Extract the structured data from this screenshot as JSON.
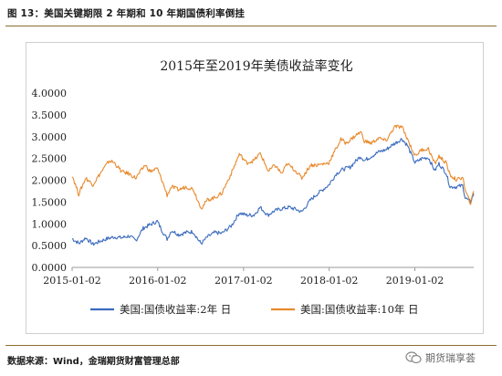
{
  "figure": {
    "title": "图 13：美国关键期限 2 年期和 10 年期国债利率倒挂",
    "source": "数据来源：Wind，金瑞期货财富管理总部",
    "watermark": "期货瑞享荟"
  },
  "colors": {
    "series_2y": "#3b6bbf",
    "series_10y": "#e8892c",
    "rule": "#8a6d2e"
  },
  "chart_data": {
    "type": "line",
    "title": "2015年至2019年美债收益率变化",
    "xlabel": "",
    "ylabel": "",
    "x_range": [
      "2015-01-02",
      "2019-09-10"
    ],
    "ylim": [
      0,
      4
    ],
    "yticks": [
      "4.0000",
      "3.5000",
      "3.0000",
      "2.5000",
      "2.0000",
      "1.5000",
      "1.0000",
      "0.5000",
      "0.0000"
    ],
    "xticks": [
      {
        "date": "2015-01-02",
        "label": "2015-01-02"
      },
      {
        "date": "2016-01-02",
        "label": "2016-01-02"
      },
      {
        "date": "2017-01-02",
        "label": "2017-01-02"
      },
      {
        "date": "2018-01-02",
        "label": "2018-01-02"
      },
      {
        "date": "2019-01-02",
        "label": "2019-01-02"
      }
    ],
    "grid": false,
    "legend": "bottom",
    "series": [
      {
        "name": "美国:国债收益率:2年 日",
        "color": "#3b6bbf",
        "points": [
          [
            "2015-01-02",
            0.66
          ],
          [
            "2015-02-01",
            0.55
          ],
          [
            "2015-03-01",
            0.68
          ],
          [
            "2015-04-01",
            0.53
          ],
          [
            "2015-05-01",
            0.6
          ],
          [
            "2015-06-01",
            0.66
          ],
          [
            "2015-07-01",
            0.7
          ],
          [
            "2015-08-01",
            0.68
          ],
          [
            "2015-09-01",
            0.72
          ],
          [
            "2015-10-01",
            0.62
          ],
          [
            "2015-11-01",
            0.9
          ],
          [
            "2015-12-01",
            0.98
          ],
          [
            "2015-12-31",
            1.06
          ],
          [
            "2016-01-20",
            0.85
          ],
          [
            "2016-02-11",
            0.65
          ],
          [
            "2016-03-01",
            0.85
          ],
          [
            "2016-04-01",
            0.75
          ],
          [
            "2016-05-01",
            0.8
          ],
          [
            "2016-06-01",
            0.82
          ],
          [
            "2016-06-27",
            0.6
          ],
          [
            "2016-07-06",
            0.55
          ],
          [
            "2016-08-01",
            0.7
          ],
          [
            "2016-09-01",
            0.8
          ],
          [
            "2016-10-01",
            0.78
          ],
          [
            "2016-11-10",
            0.95
          ],
          [
            "2016-12-15",
            1.25
          ],
          [
            "2017-01-15",
            1.2
          ],
          [
            "2017-02-15",
            1.2
          ],
          [
            "2017-03-14",
            1.38
          ],
          [
            "2017-04-15",
            1.2
          ],
          [
            "2017-05-15",
            1.3
          ],
          [
            "2017-06-15",
            1.35
          ],
          [
            "2017-07-15",
            1.38
          ],
          [
            "2017-08-15",
            1.33
          ],
          [
            "2017-09-07",
            1.27
          ],
          [
            "2017-10-15",
            1.55
          ],
          [
            "2017-11-15",
            1.7
          ],
          [
            "2017-12-31",
            1.89
          ],
          [
            "2018-02-01",
            2.15
          ],
          [
            "2018-03-01",
            2.25
          ],
          [
            "2018-04-01",
            2.3
          ],
          [
            "2018-05-15",
            2.55
          ],
          [
            "2018-06-01",
            2.45
          ],
          [
            "2018-07-01",
            2.55
          ],
          [
            "2018-08-01",
            2.65
          ],
          [
            "2018-09-01",
            2.7
          ],
          [
            "2018-10-01",
            2.82
          ],
          [
            "2018-11-08",
            2.95
          ],
          [
            "2018-12-01",
            2.8
          ],
          [
            "2019-01-03",
            2.4
          ],
          [
            "2019-02-01",
            2.5
          ],
          [
            "2019-03-01",
            2.52
          ],
          [
            "2019-03-28",
            2.22
          ],
          [
            "2019-04-15",
            2.38
          ],
          [
            "2019-05-15",
            2.17
          ],
          [
            "2019-06-01",
            1.85
          ],
          [
            "2019-07-01",
            1.85
          ],
          [
            "2019-07-25",
            1.88
          ],
          [
            "2019-08-05",
            1.6
          ],
          [
            "2019-08-28",
            1.5
          ],
          [
            "2019-09-10",
            1.7
          ]
        ]
      },
      {
        "name": "美国:国债收益率:10年 日",
        "color": "#e8892c",
        "points": [
          [
            "2015-01-02",
            2.12
          ],
          [
            "2015-01-30",
            1.68
          ],
          [
            "2015-03-01",
            2.05
          ],
          [
            "2015-04-01",
            1.9
          ],
          [
            "2015-05-01",
            2.15
          ],
          [
            "2015-06-10",
            2.45
          ],
          [
            "2015-07-01",
            2.4
          ],
          [
            "2015-08-01",
            2.2
          ],
          [
            "2015-09-01",
            2.15
          ],
          [
            "2015-10-01",
            2.05
          ],
          [
            "2015-11-09",
            2.35
          ],
          [
            "2015-12-01",
            2.2
          ],
          [
            "2015-12-31",
            2.27
          ],
          [
            "2016-01-20",
            2.0
          ],
          [
            "2016-02-11",
            1.66
          ],
          [
            "2016-03-01",
            1.85
          ],
          [
            "2016-04-01",
            1.78
          ],
          [
            "2016-05-01",
            1.85
          ],
          [
            "2016-06-01",
            1.8
          ],
          [
            "2016-06-27",
            1.46
          ],
          [
            "2016-07-08",
            1.37
          ],
          [
            "2016-08-01",
            1.55
          ],
          [
            "2016-09-01",
            1.6
          ],
          [
            "2016-10-01",
            1.7
          ],
          [
            "2016-11-10",
            2.15
          ],
          [
            "2016-12-15",
            2.6
          ],
          [
            "2017-01-15",
            2.4
          ],
          [
            "2017-02-15",
            2.45
          ],
          [
            "2017-03-14",
            2.62
          ],
          [
            "2017-04-18",
            2.2
          ],
          [
            "2017-05-15",
            2.35
          ],
          [
            "2017-06-14",
            2.15
          ],
          [
            "2017-07-07",
            2.38
          ],
          [
            "2017-08-15",
            2.2
          ],
          [
            "2017-09-07",
            2.05
          ],
          [
            "2017-10-15",
            2.35
          ],
          [
            "2017-11-15",
            2.35
          ],
          [
            "2017-12-31",
            2.4
          ],
          [
            "2018-02-21",
            2.94
          ],
          [
            "2018-03-15",
            2.85
          ],
          [
            "2018-04-25",
            3.03
          ],
          [
            "2018-05-17",
            3.11
          ],
          [
            "2018-06-01",
            2.9
          ],
          [
            "2018-07-01",
            2.85
          ],
          [
            "2018-08-01",
            2.97
          ],
          [
            "2018-09-01",
            2.9
          ],
          [
            "2018-10-08",
            3.23
          ],
          [
            "2018-11-08",
            3.22
          ],
          [
            "2018-12-01",
            2.95
          ],
          [
            "2019-01-03",
            2.56
          ],
          [
            "2019-02-01",
            2.7
          ],
          [
            "2019-03-01",
            2.72
          ],
          [
            "2019-03-28",
            2.38
          ],
          [
            "2019-04-15",
            2.55
          ],
          [
            "2019-05-15",
            2.4
          ],
          [
            "2019-06-01",
            2.12
          ],
          [
            "2019-07-01",
            2.0
          ],
          [
            "2019-07-25",
            2.08
          ],
          [
            "2019-08-05",
            1.75
          ],
          [
            "2019-08-28",
            1.47
          ],
          [
            "2019-09-10",
            1.75
          ]
        ]
      }
    ]
  }
}
